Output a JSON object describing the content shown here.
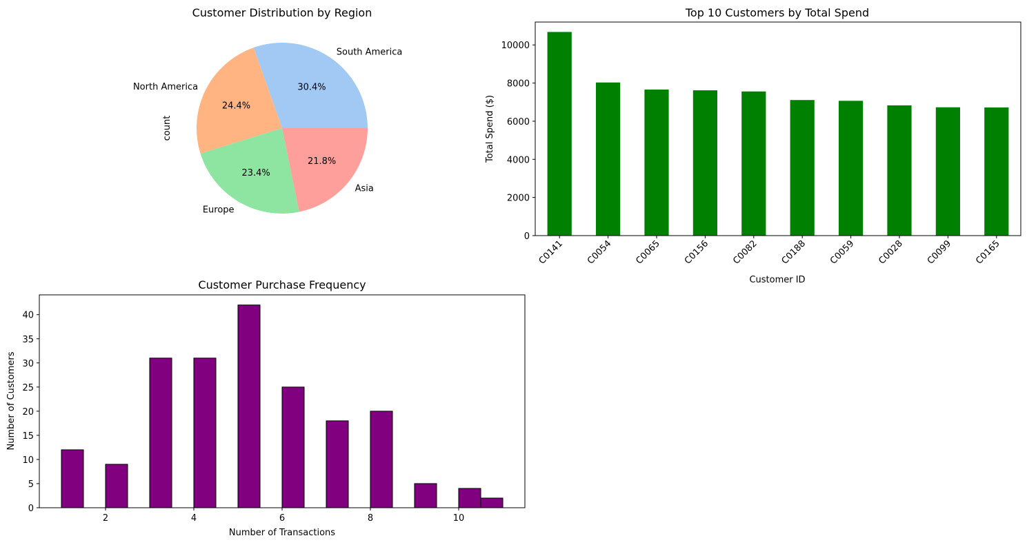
{
  "chart_data": [
    {
      "type": "pie",
      "title": "Customer Distribution by Region",
      "ylabel": "count",
      "slices": [
        {
          "label": "South America",
          "value": 30.4,
          "pct_label": "30.4%",
          "color": "#a1c9f4"
        },
        {
          "label": "North America",
          "value": 24.4,
          "pct_label": "24.4%",
          "color": "#ffb482"
        },
        {
          "label": "Europe",
          "value": 23.4,
          "pct_label": "23.4%",
          "color": "#8de5a1"
        },
        {
          "label": "Asia",
          "value": 21.8,
          "pct_label": "21.8%",
          "color": "#ff9f9b"
        }
      ]
    },
    {
      "type": "bar",
      "title": "Top 10 Customers by Total Spend",
      "xlabel": "Customer ID",
      "ylabel": "Total Spend ($)",
      "categories": [
        "C0141",
        "C0054",
        "C0065",
        "C0156",
        "C0082",
        "C0188",
        "C0059",
        "C0028",
        "C0099",
        "C0165"
      ],
      "values": [
        10680,
        8030,
        7660,
        7620,
        7560,
        7110,
        7070,
        6830,
        6730,
        6720
      ],
      "ylim": [
        0,
        11200
      ],
      "yticks": [
        0,
        2000,
        4000,
        6000,
        8000,
        10000
      ],
      "color": "#008000"
    },
    {
      "type": "bar",
      "title": "Customer Purchase Frequency",
      "xlabel": "Number of Transactions",
      "ylabel": "Number of Customers",
      "bins": [
        {
          "x0": 1.0,
          "x1": 1.5,
          "count": 12
        },
        {
          "x0": 2.0,
          "x1": 2.5,
          "count": 9
        },
        {
          "x0": 3.0,
          "x1": 3.5,
          "count": 31
        },
        {
          "x0": 4.0,
          "x1": 4.5,
          "count": 31
        },
        {
          "x0": 5.0,
          "x1": 5.5,
          "count": 42
        },
        {
          "x0": 6.0,
          "x1": 6.5,
          "count": 25
        },
        {
          "x0": 7.0,
          "x1": 7.5,
          "count": 18
        },
        {
          "x0": 8.0,
          "x1": 8.5,
          "count": 20
        },
        {
          "x0": 9.0,
          "x1": 9.5,
          "count": 5
        },
        {
          "x0": 10.0,
          "x1": 10.5,
          "count": 4
        },
        {
          "x0": 10.5,
          "x1": 11.0,
          "count": 2
        }
      ],
      "xlim": [
        0.5,
        11.5
      ],
      "ylim": [
        0,
        44.1
      ],
      "xticks": [
        2,
        4,
        6,
        8,
        10
      ],
      "yticks": [
        0,
        5,
        10,
        15,
        20,
        25,
        30,
        35,
        40
      ],
      "color": "#800080",
      "edgecolor": "#000000"
    }
  ]
}
